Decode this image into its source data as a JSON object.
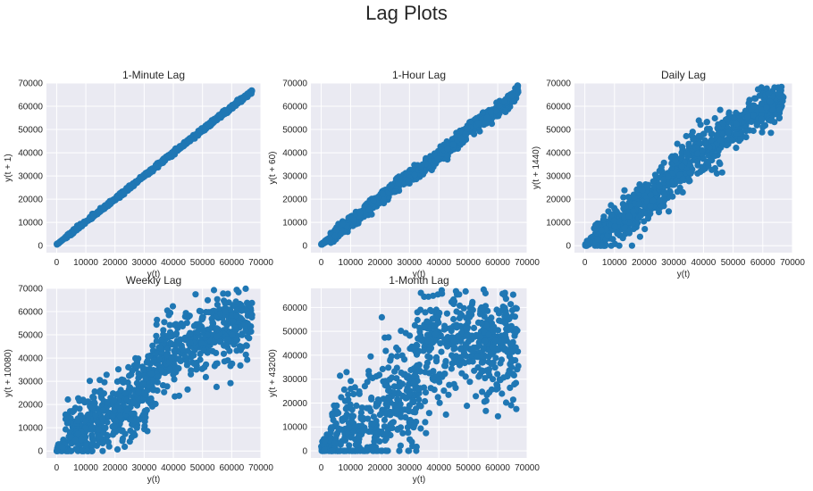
{
  "figure": {
    "title": "Lag Plots",
    "bg": "#ffffff",
    "axes_bg": "#eaeaf2",
    "grid_color": "#ffffff",
    "point_color": "#1f77b4"
  },
  "chart_data": [
    {
      "type": "scatter",
      "title": "1-Minute Lag",
      "xlabel": "y(t)",
      "ylabel": "y(t + 1)",
      "lag": 1,
      "xlim": [
        -3500,
        70000
      ],
      "ylim": [
        -3000,
        70000
      ],
      "xticks": [
        0,
        10000,
        20000,
        30000,
        40000,
        50000,
        60000,
        70000
      ],
      "yticks": [
        0,
        10000,
        20000,
        30000,
        40000,
        50000,
        60000,
        70000
      ],
      "grid": true,
      "spread": 400,
      "trend": [
        [
          0,
          500
        ],
        [
          500,
          1000
        ],
        [
          20000,
          20000
        ],
        [
          45000,
          45000
        ],
        [
          67000,
          66500
        ]
      ]
    },
    {
      "type": "scatter",
      "title": "1-Hour Lag",
      "xlabel": "y(t)",
      "ylabel": "y(t + 60)",
      "lag": 60,
      "xlim": [
        -3500,
        70000
      ],
      "ylim": [
        -3000,
        70000
      ],
      "xticks": [
        0,
        10000,
        20000,
        30000,
        40000,
        50000,
        60000,
        70000
      ],
      "yticks": [
        0,
        10000,
        20000,
        30000,
        40000,
        50000,
        60000,
        70000
      ],
      "grid": true,
      "spread": 1500,
      "trend": [
        [
          0,
          500
        ],
        [
          5000,
          5000
        ],
        [
          20000,
          20000
        ],
        [
          30000,
          30000
        ],
        [
          40000,
          38000
        ],
        [
          50000,
          50000
        ],
        [
          60000,
          58000
        ],
        [
          67000,
          66000
        ]
      ]
    },
    {
      "type": "scatter",
      "title": "Daily Lag",
      "xlabel": "y(t)",
      "ylabel": "y(t + 1440)",
      "lag": 1440,
      "xlim": [
        -3500,
        70000
      ],
      "ylim": [
        -3000,
        70000
      ],
      "xticks": [
        0,
        10000,
        20000,
        30000,
        40000,
        50000,
        60000,
        70000
      ],
      "yticks": [
        0,
        10000,
        20000,
        30000,
        40000,
        50000,
        60000,
        70000
      ],
      "grid": true,
      "spread": 4500,
      "trend": [
        [
          0,
          500
        ],
        [
          10000,
          9000
        ],
        [
          18000,
          15000
        ],
        [
          25000,
          24000
        ],
        [
          35000,
          37000
        ],
        [
          45000,
          45000
        ],
        [
          55000,
          56000
        ],
        [
          67000,
          63000
        ]
      ]
    },
    {
      "type": "scatter",
      "title": "Weekly Lag",
      "xlabel": "y(t)",
      "ylabel": "y(t + 10080)",
      "lag": 10080,
      "xlim": [
        -3500,
        70000
      ],
      "ylim": [
        -3000,
        70000
      ],
      "xticks": [
        0,
        10000,
        20000,
        30000,
        40000,
        50000,
        60000,
        70000
      ],
      "yticks": [
        0,
        10000,
        20000,
        30000,
        40000,
        50000,
        60000,
        70000
      ],
      "grid": true,
      "spread": 8000,
      "trend": [
        [
          0,
          500
        ],
        [
          10000,
          10000
        ],
        [
          20000,
          15000
        ],
        [
          30000,
          24000
        ],
        [
          35000,
          40000
        ],
        [
          45000,
          45000
        ],
        [
          55000,
          52000
        ],
        [
          67000,
          57000
        ]
      ]
    },
    {
      "type": "scatter",
      "title": "1-Month Lag",
      "xlabel": "y(t)",
      "ylabel": "y(t + 43200)",
      "lag": 43200,
      "xlim": [
        -3500,
        70000
      ],
      "ylim": [
        -3000,
        68000
      ],
      "xticks": [
        0,
        10000,
        20000,
        30000,
        40000,
        50000,
        60000,
        70000
      ],
      "yticks": [
        0,
        10000,
        20000,
        30000,
        40000,
        50000,
        60000
      ],
      "grid": true,
      "spread": 12000,
      "trend": [
        [
          0,
          500
        ],
        [
          10000,
          11000
        ],
        [
          20000,
          16000
        ],
        [
          30000,
          20000
        ],
        [
          35000,
          40000
        ],
        [
          45000,
          48000
        ],
        [
          55000,
          45000
        ],
        [
          67000,
          45000
        ]
      ]
    }
  ]
}
